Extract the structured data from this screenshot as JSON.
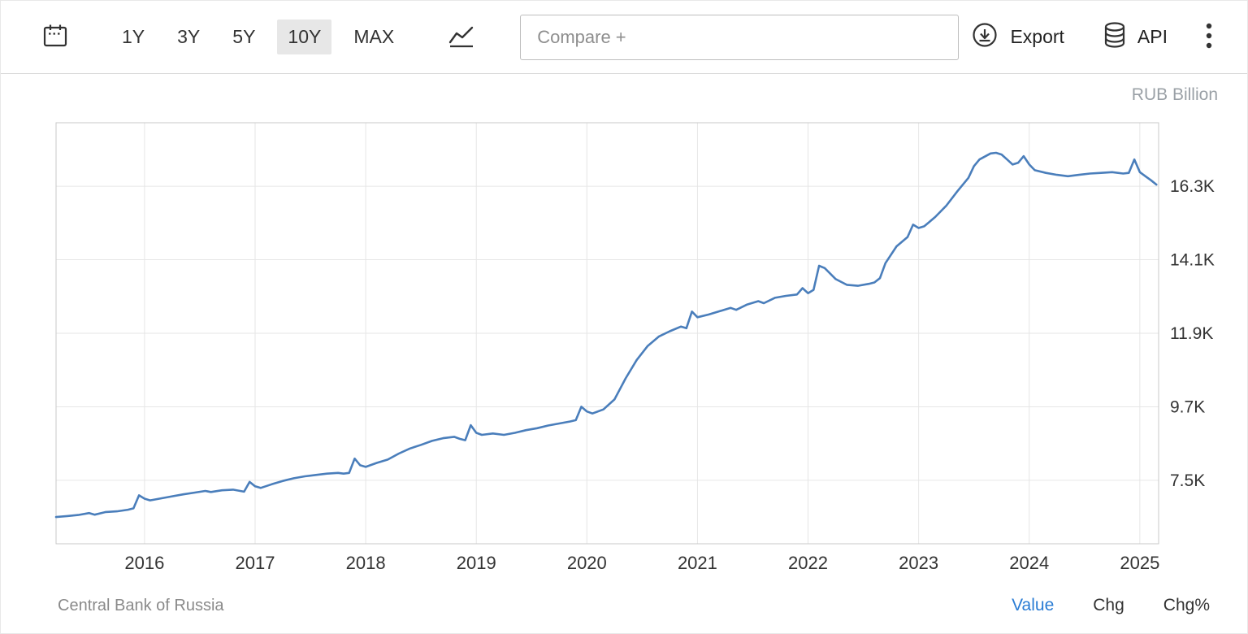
{
  "toolbar": {
    "ranges": [
      {
        "label": "1Y",
        "active": false
      },
      {
        "label": "3Y",
        "active": false
      },
      {
        "label": "5Y",
        "active": false
      },
      {
        "label": "10Y",
        "active": true
      },
      {
        "label": "MAX",
        "active": false
      }
    ],
    "compare_placeholder": "Compare +",
    "export_label": "Export",
    "api_label": "API"
  },
  "chart": {
    "unit_label": "RUB Billion"
  },
  "footer": {
    "source": "Central Bank of Russia",
    "tabs": [
      {
        "label": "Value",
        "active": true
      },
      {
        "label": "Chg",
        "active": false
      },
      {
        "label": "Chg%",
        "active": false
      }
    ]
  },
  "chart_data": {
    "type": "line",
    "title": "",
    "xlabel": "",
    "ylabel": "RUB Billion",
    "legend": "none",
    "grid": true,
    "xlim": [
      2015.2,
      2025.17
    ],
    "ylim": [
      5.6,
      18.2
    ],
    "x_ticks": [
      2016,
      2017,
      2018,
      2019,
      2020,
      2021,
      2022,
      2023,
      2024,
      2025
    ],
    "x_tick_labels": [
      "2016",
      "2017",
      "2018",
      "2019",
      "2020",
      "2021",
      "2022",
      "2023",
      "2024",
      "2025"
    ],
    "y_ticks": [
      7.5,
      9.7,
      11.9,
      14.1,
      16.3
    ],
    "y_tick_labels": [
      "7.5K",
      "9.7K",
      "11.9K",
      "14.1K",
      "16.3K"
    ],
    "line_color": "#4a7ebb",
    "grid_color": "#e6e6e6",
    "border_color": "#c9c9c9",
    "axis_text_color": "#333333",
    "series": [
      {
        "name": "Value",
        "x": [
          2015.2,
          2015.3,
          2015.4,
          2015.5,
          2015.55,
          2015.65,
          2015.75,
          2015.85,
          2015.9,
          2015.95,
          2016.0,
          2016.05,
          2016.15,
          2016.25,
          2016.35,
          2016.45,
          2016.55,
          2016.6,
          2016.7,
          2016.8,
          2016.9,
          2016.95,
          2017.0,
          2017.05,
          2017.15,
          2017.25,
          2017.35,
          2017.45,
          2017.55,
          2017.65,
          2017.75,
          2017.8,
          2017.85,
          2017.9,
          2017.95,
          2018.0,
          2018.1,
          2018.2,
          2018.3,
          2018.4,
          2018.5,
          2018.6,
          2018.7,
          2018.8,
          2018.85,
          2018.9,
          2018.95,
          2019.0,
          2019.05,
          2019.15,
          2019.25,
          2019.35,
          2019.45,
          2019.55,
          2019.65,
          2019.75,
          2019.85,
          2019.9,
          2019.95,
          2020.0,
          2020.05,
          2020.15,
          2020.25,
          2020.35,
          2020.45,
          2020.55,
          2020.65,
          2020.75,
          2020.85,
          2020.9,
          2020.95,
          2021.0,
          2021.1,
          2021.2,
          2021.3,
          2021.35,
          2021.45,
          2021.55,
          2021.6,
          2021.7,
          2021.8,
          2021.9,
          2021.95,
          2022.0,
          2022.05,
          2022.1,
          2022.15,
          2022.25,
          2022.35,
          2022.45,
          2022.55,
          2022.6,
          2022.65,
          2022.7,
          2022.8,
          2022.9,
          2022.95,
          2023.0,
          2023.05,
          2023.15,
          2023.25,
          2023.35,
          2023.45,
          2023.5,
          2023.55,
          2023.65,
          2023.7,
          2023.75,
          2023.8,
          2023.85,
          2023.9,
          2023.95,
          2024.0,
          2024.05,
          2024.15,
          2024.25,
          2024.35,
          2024.45,
          2024.55,
          2024.65,
          2024.75,
          2024.85,
          2024.9,
          2024.95,
          2025.0,
          2025.05,
          2025.1,
          2025.15
        ],
        "y": [
          6.4,
          6.43,
          6.46,
          6.52,
          6.47,
          6.55,
          6.57,
          6.62,
          6.66,
          7.05,
          6.95,
          6.9,
          6.96,
          7.02,
          7.08,
          7.13,
          7.18,
          7.15,
          7.2,
          7.22,
          7.16,
          7.45,
          7.32,
          7.27,
          7.38,
          7.48,
          7.56,
          7.62,
          7.66,
          7.7,
          7.72,
          7.7,
          7.72,
          8.15,
          7.95,
          7.9,
          8.02,
          8.12,
          8.3,
          8.45,
          8.56,
          8.68,
          8.76,
          8.8,
          8.74,
          8.7,
          9.15,
          8.92,
          8.86,
          8.9,
          8.86,
          8.92,
          9.0,
          9.06,
          9.14,
          9.2,
          9.26,
          9.3,
          9.7,
          9.56,
          9.5,
          9.62,
          9.92,
          10.55,
          11.1,
          11.52,
          11.8,
          11.96,
          12.1,
          12.05,
          12.55,
          12.38,
          12.46,
          12.56,
          12.66,
          12.6,
          12.76,
          12.86,
          12.8,
          12.96,
          13.02,
          13.06,
          13.25,
          13.1,
          13.2,
          13.92,
          13.85,
          13.52,
          13.35,
          13.32,
          13.38,
          13.42,
          13.55,
          14.0,
          14.5,
          14.78,
          15.15,
          15.05,
          15.1,
          15.38,
          15.72,
          16.15,
          16.55,
          16.9,
          17.1,
          17.28,
          17.3,
          17.25,
          17.1,
          16.95,
          17.0,
          17.2,
          16.95,
          16.78,
          16.7,
          16.64,
          16.6,
          16.64,
          16.68,
          16.7,
          16.72,
          16.68,
          16.7,
          17.1,
          16.72,
          16.6,
          16.48,
          16.35
        ]
      }
    ]
  }
}
